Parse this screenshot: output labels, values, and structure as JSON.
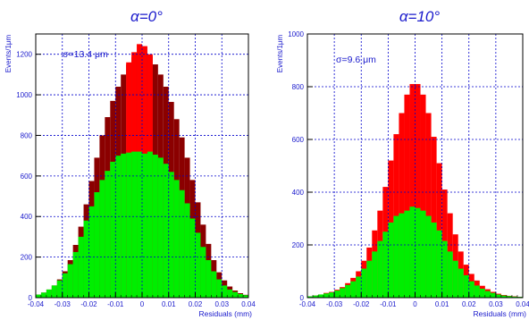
{
  "colors": {
    "axis": "#000000",
    "text": "#1a1acc",
    "grid": "#0000cc",
    "green": "#00ee00",
    "red": "#ff0000",
    "dark_red": "#8b0000",
    "background": "#ffffff"
  },
  "chart_data": [
    {
      "type": "bar",
      "title": "α=0°",
      "xlabel": "Residuals (mm)",
      "ylabel": "Events/1μm",
      "annotation": "σ=13.4 μm",
      "xlim": [
        -0.04,
        0.04
      ],
      "ylim": [
        0,
        1300
      ],
      "x_ticks": [
        -0.04,
        -0.03,
        -0.02,
        -0.01,
        0,
        0.01,
        0.02,
        0.03,
        0.04
      ],
      "x_tick_labels": [
        "-0.04",
        "-0.03",
        "-0.02",
        "-0.01",
        "0",
        "0.01",
        "0.02",
        "0.03",
        "0.04"
      ],
      "y_ticks": [
        0,
        200,
        400,
        600,
        800,
        1000,
        1200
      ],
      "y_tick_labels": [
        "0",
        "200",
        "400",
        "600",
        "800",
        "1000",
        "1200"
      ],
      "grid": true,
      "bin_width": 0.001,
      "series": [
        {
          "name": "",
          "color": "#8b0000",
          "x": [
            -0.039,
            -0.037,
            -0.035,
            -0.033,
            -0.031,
            -0.029,
            -0.027,
            -0.025,
            -0.023,
            -0.021,
            -0.019,
            -0.017,
            -0.015,
            -0.013,
            -0.011,
            -0.009,
            -0.007,
            -0.005,
            -0.003,
            -0.001,
            0.001,
            0.003,
            0.005,
            0.007,
            0.009,
            0.011,
            0.013,
            0.015,
            0.017,
            0.019,
            0.021,
            0.023,
            0.025,
            0.027,
            0.029,
            0.031,
            0.033,
            0.035,
            0.037,
            0.039
          ],
          "values": [
            15,
            25,
            40,
            60,
            90,
            130,
            185,
            260,
            350,
            460,
            575,
            690,
            800,
            890,
            970,
            1040,
            1100,
            1150,
            1185,
            1205,
            1210,
            1190,
            1150,
            1100,
            1040,
            965,
            880,
            790,
            690,
            580,
            470,
            360,
            265,
            185,
            125,
            85,
            55,
            35,
            22,
            14
          ]
        },
        {
          "name": "",
          "color": "#ff0000",
          "x": [
            -0.005,
            -0.003,
            -0.001,
            0.001,
            0.003
          ],
          "values": [
            1160,
            1210,
            1250,
            1240,
            1200
          ]
        },
        {
          "name": "",
          "color": "#00ee00",
          "x": [
            -0.039,
            -0.037,
            -0.035,
            -0.033,
            -0.031,
            -0.029,
            -0.027,
            -0.025,
            -0.023,
            -0.021,
            -0.019,
            -0.017,
            -0.015,
            -0.013,
            -0.011,
            -0.009,
            -0.007,
            -0.005,
            -0.003,
            -0.001,
            0.001,
            0.003,
            0.005,
            0.007,
            0.009,
            0.011,
            0.013,
            0.015,
            0.017,
            0.019,
            0.021,
            0.023,
            0.025,
            0.027,
            0.029,
            0.031,
            0.033,
            0.035,
            0.037,
            0.039
          ],
          "values": [
            15,
            25,
            40,
            60,
            85,
            120,
            165,
            225,
            300,
            380,
            450,
            520,
            580,
            625,
            670,
            700,
            710,
            715,
            720,
            720,
            710,
            720,
            705,
            690,
            660,
            620,
            580,
            530,
            465,
            390,
            320,
            250,
            185,
            130,
            90,
            60,
            40,
            28,
            18,
            12
          ]
        }
      ]
    },
    {
      "type": "bar",
      "title": "α=10°",
      "xlabel": "Residuals (mm)",
      "ylabel": "Events/1μm",
      "annotation": "σ=9.6 μm",
      "xlim": [
        -0.04,
        0.04
      ],
      "ylim": [
        0,
        1000
      ],
      "x_ticks": [
        -0.04,
        -0.03,
        -0.02,
        -0.01,
        0,
        0.01,
        0.02,
        0.03,
        0.04
      ],
      "x_tick_labels": [
        "-0.04",
        "-0.03",
        "-0.02",
        "-0.01",
        "0",
        "0.01",
        "0.02",
        "0.03",
        "0.04"
      ],
      "y_ticks": [
        0,
        200,
        400,
        600,
        800,
        1000
      ],
      "y_tick_labels": [
        "0",
        "200",
        "400",
        "600",
        "800",
        "1000"
      ],
      "grid": true,
      "bin_width": 0.001,
      "series": [
        {
          "name": "",
          "color": "#ff0000",
          "x": [
            -0.039,
            -0.037,
            -0.035,
            -0.033,
            -0.031,
            -0.029,
            -0.027,
            -0.025,
            -0.023,
            -0.021,
            -0.019,
            -0.017,
            -0.015,
            -0.013,
            -0.011,
            -0.009,
            -0.007,
            -0.005,
            -0.003,
            -0.001,
            0.001,
            0.003,
            0.005,
            0.007,
            0.009,
            0.011,
            0.013,
            0.015,
            0.017,
            0.019,
            0.021,
            0.023,
            0.025,
            0.027,
            0.029,
            0.031,
            0.033,
            0.035,
            0.037,
            0.039
          ],
          "values": [
            5,
            8,
            12,
            18,
            22,
            30,
            40,
            55,
            75,
            100,
            140,
            190,
            255,
            330,
            420,
            520,
            620,
            700,
            770,
            810,
            810,
            770,
            700,
            610,
            510,
            410,
            320,
            240,
            175,
            125,
            90,
            65,
            45,
            32,
            22,
            15,
            10,
            7,
            5,
            3
          ]
        },
        {
          "name": "",
          "color": "#00ee00",
          "x": [
            -0.039,
            -0.037,
            -0.035,
            -0.033,
            -0.031,
            -0.029,
            -0.027,
            -0.025,
            -0.023,
            -0.021,
            -0.019,
            -0.017,
            -0.015,
            -0.013,
            -0.011,
            -0.009,
            -0.007,
            -0.005,
            -0.003,
            -0.001,
            0.001,
            0.003,
            0.005,
            0.007,
            0.009,
            0.011,
            0.013,
            0.015,
            0.017,
            0.019,
            0.021,
            0.023,
            0.025,
            0.027,
            0.029,
            0.031,
            0.033,
            0.035,
            0.037,
            0.039
          ],
          "values": [
            5,
            8,
            12,
            16,
            20,
            27,
            36,
            48,
            62,
            80,
            110,
            140,
            175,
            215,
            250,
            285,
            310,
            320,
            330,
            345,
            340,
            330,
            310,
            285,
            255,
            215,
            175,
            140,
            110,
            85,
            62,
            46,
            34,
            25,
            18,
            12,
            8,
            6,
            4,
            3
          ]
        }
      ]
    }
  ]
}
